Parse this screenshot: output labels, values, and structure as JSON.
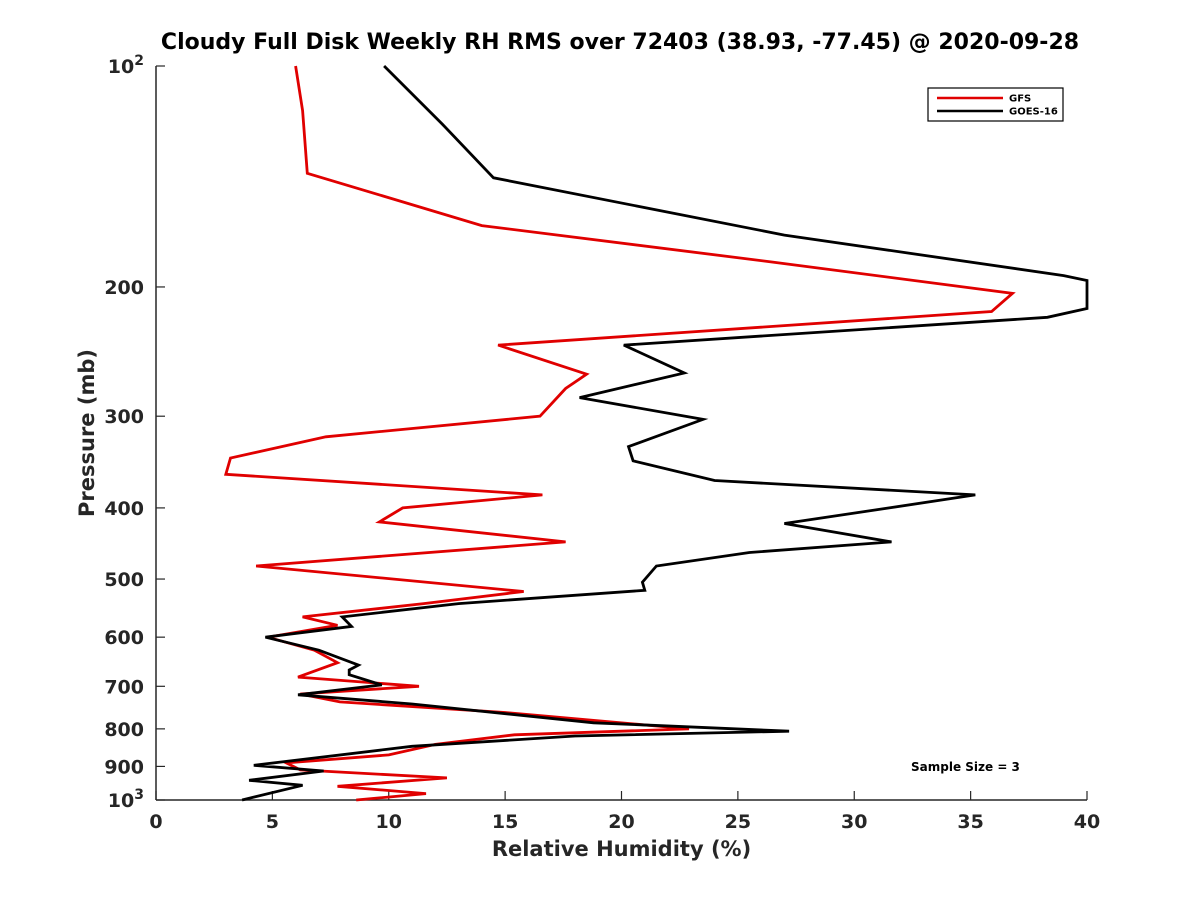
{
  "chart_data": {
    "type": "line",
    "title": "Cloudy Full Disk Weekly RH RMS over 72403 (38.93, -77.45) @ 2020-09-28",
    "xlabel": "Relative Humidity (%)",
    "ylabel": "Pressure (mb)",
    "xlim": [
      0,
      40
    ],
    "ylim": [
      100,
      1000
    ],
    "y_scale": "log",
    "y_reversed": true,
    "grid": false,
    "legend_position": "top-right",
    "x_ticks": [
      "0",
      "5",
      "10",
      "15",
      "20",
      "25",
      "30",
      "35",
      "40"
    ],
    "y_ticks": [
      {
        "value": 100,
        "base": "10",
        "exp": "2"
      },
      {
        "value": 200,
        "label": "200"
      },
      {
        "value": 300,
        "label": "300"
      },
      {
        "value": 400,
        "label": "400"
      },
      {
        "value": 500,
        "label": "500"
      },
      {
        "value": 600,
        "label": "600"
      },
      {
        "value": 700,
        "label": "700"
      },
      {
        "value": 800,
        "label": "800"
      },
      {
        "value": 900,
        "label": "900"
      },
      {
        "value": 1000,
        "base": "10",
        "exp": "3"
      }
    ],
    "series": [
      {
        "name": "GFS",
        "color": "#e00000",
        "points": [
          [
            6.0,
            100
          ],
          [
            6.3,
            115
          ],
          [
            6.5,
            140
          ],
          [
            14.0,
            165
          ],
          [
            26.5,
            185
          ],
          [
            36.8,
            204
          ],
          [
            35.9,
            216
          ],
          [
            14.7,
            240
          ],
          [
            18.5,
            263
          ],
          [
            17.6,
            275
          ],
          [
            16.5,
            300
          ],
          [
            7.3,
            320
          ],
          [
            3.2,
            342
          ],
          [
            3.0,
            360
          ],
          [
            16.6,
            384
          ],
          [
            10.6,
            400
          ],
          [
            9.6,
            418
          ],
          [
            17.6,
            445
          ],
          [
            4.3,
            480
          ],
          [
            15.8,
            520
          ],
          [
            11.5,
            540
          ],
          [
            6.3,
            563
          ],
          [
            7.8,
            578
          ],
          [
            4.8,
            600
          ],
          [
            6.8,
            625
          ],
          [
            7.8,
            650
          ],
          [
            6.1,
            680
          ],
          [
            11.3,
            700
          ],
          [
            6.2,
            717
          ],
          [
            7.9,
            735
          ],
          [
            15.0,
            760
          ],
          [
            22.9,
            800
          ],
          [
            15.4,
            815
          ],
          [
            12.0,
            840
          ],
          [
            10.0,
            868
          ],
          [
            5.6,
            890
          ],
          [
            6.2,
            910
          ],
          [
            12.5,
            933
          ],
          [
            7.8,
            958
          ],
          [
            11.6,
            980
          ],
          [
            8.6,
            1000
          ]
        ]
      },
      {
        "name": "GOES-16",
        "color": "#000000",
        "points": [
          [
            9.8,
            100
          ],
          [
            12.3,
            120
          ],
          [
            14.5,
            142
          ],
          [
            27.0,
            170
          ],
          [
            39.0,
            193
          ],
          [
            40.0,
            196
          ],
          [
            40.0,
            214
          ],
          [
            38.3,
            220
          ],
          [
            20.1,
            240
          ],
          [
            22.7,
            262
          ],
          [
            18.2,
            283
          ],
          [
            23.5,
            303
          ],
          [
            20.3,
            330
          ],
          [
            20.5,
            345
          ],
          [
            24.0,
            367
          ],
          [
            35.2,
            384
          ],
          [
            31.5,
            400
          ],
          [
            27.0,
            420
          ],
          [
            31.6,
            445
          ],
          [
            25.5,
            460
          ],
          [
            21.5,
            480
          ],
          [
            20.9,
            505
          ],
          [
            21.0,
            518
          ],
          [
            13.0,
            540
          ],
          [
            8.0,
            563
          ],
          [
            8.4,
            580
          ],
          [
            4.7,
            600
          ],
          [
            7.0,
            625
          ],
          [
            8.7,
            655
          ],
          [
            8.3,
            665
          ],
          [
            8.3,
            675
          ],
          [
            9.7,
            697
          ],
          [
            6.1,
            719
          ],
          [
            11.0,
            740
          ],
          [
            18.8,
            785
          ],
          [
            27.2,
            806
          ],
          [
            18.0,
            818
          ],
          [
            11.0,
            845
          ],
          [
            4.2,
            897
          ],
          [
            7.2,
            913
          ],
          [
            4.0,
            940
          ],
          [
            6.3,
            955
          ],
          [
            3.7,
            1000
          ]
        ]
      }
    ],
    "annotation": "Sample Size = 3"
  }
}
